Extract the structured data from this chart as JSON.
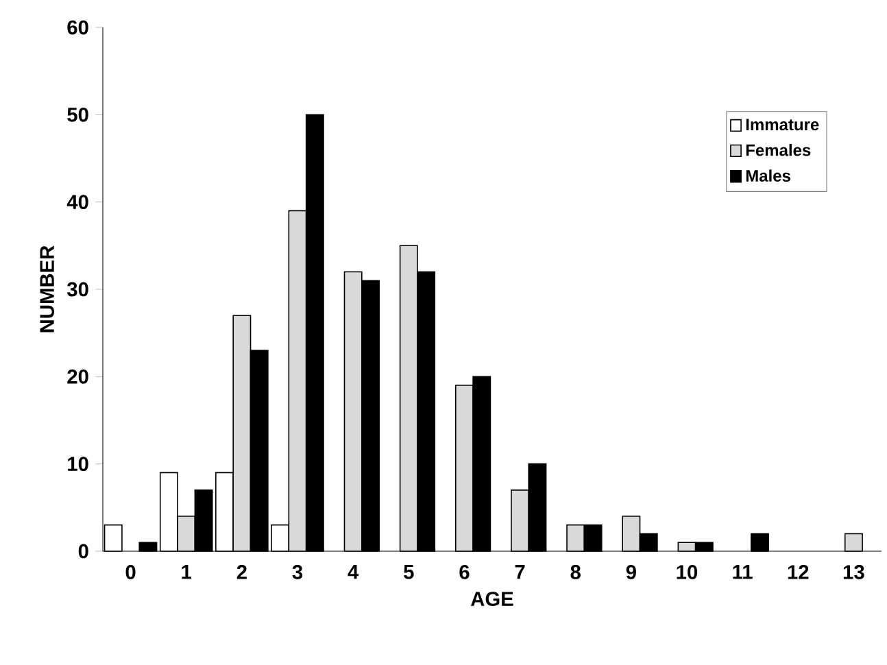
{
  "chart_data": {
    "type": "bar",
    "xlabel": "AGE",
    "ylabel": "NUMBER",
    "categories": [
      "0",
      "1",
      "2",
      "3",
      "4",
      "5",
      "6",
      "7",
      "8",
      "9",
      "10",
      "11",
      "12",
      "13"
    ],
    "series": [
      {
        "name": "Immature",
        "color": "#ffffff",
        "values": [
          3,
          9,
          9,
          3,
          null,
          null,
          null,
          null,
          null,
          null,
          null,
          null,
          null,
          null
        ]
      },
      {
        "name": "Females",
        "color": "#d9d9d9",
        "values": [
          null,
          4,
          27,
          39,
          32,
          35,
          19,
          7,
          3,
          4,
          1,
          null,
          null,
          2
        ]
      },
      {
        "name": "Males",
        "color": "#000000",
        "values": [
          1,
          7,
          23,
          50,
          31,
          32,
          20,
          10,
          3,
          2,
          1,
          2,
          null,
          null
        ]
      }
    ],
    "ylim": [
      0,
      60
    ],
    "yticks": [
      0,
      10,
      20,
      30,
      40,
      50,
      60
    ],
    "grid": false,
    "legend": "top right"
  }
}
